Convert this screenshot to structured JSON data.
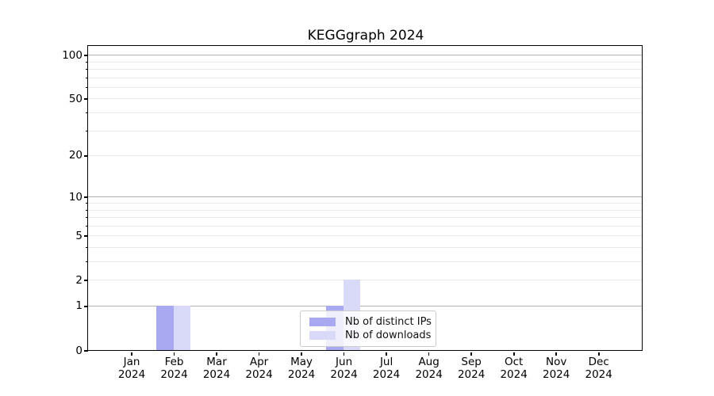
{
  "chart_data": {
    "type": "bar",
    "title": "KEGGgraph 2024",
    "xlabel": "",
    "ylabel": "",
    "categories": [
      "Jan 2024",
      "Feb 2024",
      "Mar 2024",
      "Apr 2024",
      "May 2024",
      "Jun 2024",
      "Jul 2024",
      "Aug 2024",
      "Sep 2024",
      "Oct 2024",
      "Nov 2024",
      "Dec 2024"
    ],
    "x": {
      "months": [
        "Jan",
        "Feb",
        "Mar",
        "Apr",
        "May",
        "Jun",
        "Jul",
        "Aug",
        "Sep",
        "Oct",
        "Nov",
        "Dec"
      ],
      "year": "2024"
    },
    "series": [
      {
        "name": "Nb of distinct IPs",
        "color": "#a9a9f2",
        "values": [
          0,
          1,
          0,
          0,
          0,
          1,
          0,
          0,
          0,
          0,
          0,
          0
        ]
      },
      {
        "name": "Nb of downloads",
        "color": "#d9d9f8",
        "values": [
          0,
          1,
          0,
          0,
          0,
          2,
          0,
          0,
          0,
          0,
          0,
          0
        ]
      }
    ],
    "y_scale": "log1p",
    "y_tick_labels": [
      "0",
      "1",
      "2",
      "5",
      "10",
      "20",
      "50",
      "100"
    ],
    "y_tick_values": [
      0,
      1,
      2,
      5,
      10,
      20,
      50,
      100
    ],
    "y_minor_values": [
      3,
      4,
      6,
      7,
      8,
      9,
      30,
      40,
      60,
      70,
      80,
      90
    ],
    "ylim": [
      0,
      115
    ],
    "grid": "on",
    "legend_position": "lower-center-inside",
    "colors": {
      "major_grid": "#b0b0b0",
      "minor_grid": "#e9e9e9",
      "spine": "#000000",
      "text": "#000000",
      "legend_border": "#cccccc"
    }
  }
}
